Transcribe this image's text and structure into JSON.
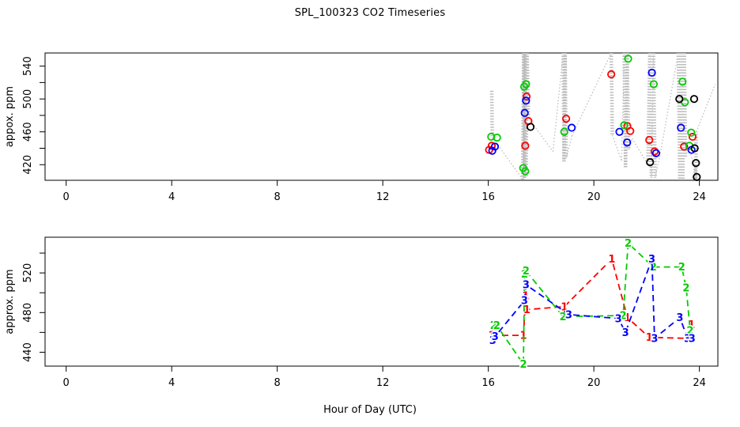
{
  "figure": {
    "title": "SPL_100323  CO2 Timeseries",
    "xlabel": "Hour of Day (UTC)"
  },
  "chart_data": [
    {
      "type": "scatter",
      "title": "SPL_100323  CO2 Timeseries",
      "ylabel": "appox. ppm",
      "xlabel": "",
      "xlim": [
        -0.8,
        24.7
      ],
      "ylim": [
        401,
        556
      ],
      "x_ticks": [
        0,
        4,
        8,
        12,
        16,
        20,
        24
      ],
      "y_ticks_labeled": [
        420,
        460,
        500,
        540
      ],
      "y_ticks_minor": [
        440,
        480,
        520
      ],
      "grid": false,
      "legend": "none",
      "grey_trace": {
        "name": "high-rate-raw-co2-trace",
        "color": "#bdbdbd",
        "style": "dotted",
        "points": [
          [
            16.13,
            510
          ],
          [
            16.15,
            452
          ],
          [
            16.3,
            447
          ],
          [
            17.3,
            402
          ],
          [
            17.34,
            556
          ],
          [
            17.37,
            404
          ],
          [
            17.4,
            556
          ],
          [
            17.43,
            406
          ],
          [
            17.47,
            556
          ],
          [
            17.52,
            477
          ],
          [
            18.45,
            436
          ],
          [
            18.84,
            556
          ],
          [
            18.87,
            424
          ],
          [
            18.91,
            556
          ],
          [
            18.95,
            428
          ],
          [
            19.17,
            455
          ],
          [
            20.66,
            556
          ],
          [
            20.7,
            456
          ],
          [
            21.05,
            425
          ],
          [
            21.15,
            556
          ],
          [
            21.2,
            417
          ],
          [
            21.26,
            556
          ],
          [
            21.32,
            438
          ],
          [
            21.45,
            452
          ],
          [
            22.05,
            420
          ],
          [
            22.12,
            556
          ],
          [
            22.18,
            404
          ],
          [
            22.26,
            556
          ],
          [
            22.32,
            404
          ],
          [
            22.5,
            430
          ],
          [
            23.2,
            556
          ],
          [
            23.26,
            403
          ],
          [
            23.31,
            556
          ],
          [
            23.37,
            403
          ],
          [
            23.43,
            556
          ],
          [
            23.47,
            430
          ],
          [
            23.6,
            440
          ],
          [
            23.84,
            415
          ],
          [
            23.86,
            402
          ],
          [
            23.88,
            460
          ],
          [
            24.6,
            518
          ]
        ]
      },
      "series": [
        {
          "name": "sample-1-red",
          "color": "#ff0000",
          "marker": "open-circle",
          "points": [
            [
              16.03,
              438
            ],
            [
              16.13,
              443
            ],
            [
              17.4,
              443
            ],
            [
              17.45,
              503
            ],
            [
              17.52,
              473
            ],
            [
              18.95,
              476
            ],
            [
              20.66,
              530
            ],
            [
              21.27,
              467
            ],
            [
              21.38,
              461
            ],
            [
              22.1,
              450
            ],
            [
              22.3,
              436
            ],
            [
              23.42,
              442
            ],
            [
              23.74,
              454
            ]
          ]
        },
        {
          "name": "sample-2-green",
          "color": "#00cc00",
          "marker": "open-circle",
          "points": [
            [
              16.11,
              454
            ],
            [
              16.33,
              453
            ],
            [
              17.32,
              416
            ],
            [
              17.4,
              412
            ],
            [
              17.36,
              515
            ],
            [
              17.43,
              518
            ],
            [
              18.88,
              460
            ],
            [
              21.15,
              468
            ],
            [
              21.3,
              549
            ],
            [
              22.27,
              518
            ],
            [
              23.36,
              521
            ],
            [
              23.45,
              496
            ],
            [
              23.62,
              443
            ],
            [
              23.69,
              459
            ]
          ]
        },
        {
          "name": "sample-3-blue",
          "color": "#0000ff",
          "marker": "open-circle",
          "points": [
            [
              16.15,
              437
            ],
            [
              16.25,
              442
            ],
            [
              17.38,
              483
            ],
            [
              17.43,
              498
            ],
            [
              19.16,
              465
            ],
            [
              20.97,
              460
            ],
            [
              21.26,
              447
            ],
            [
              22.2,
              532
            ],
            [
              22.36,
              434
            ],
            [
              23.3,
              465
            ],
            [
              23.7,
              438
            ]
          ]
        },
        {
          "name": "sample-4-black",
          "color": "#000000",
          "marker": "open-circle",
          "points": [
            [
              17.6,
              466
            ],
            [
              22.13,
              423
            ],
            [
              23.24,
              500
            ],
            [
              23.8,
              500
            ],
            [
              23.82,
              440
            ],
            [
              23.87,
              422
            ],
            [
              23.9,
              405
            ]
          ]
        }
      ]
    },
    {
      "type": "line",
      "title": "",
      "ylabel": "approx. ppm",
      "xlabel": "Hour of Day (UTC)",
      "xlim": [
        -0.8,
        24.7
      ],
      "ylim": [
        426,
        556
      ],
      "x_ticks": [
        0,
        4,
        8,
        12,
        16,
        20,
        24
      ],
      "y_ticks_labeled": [
        440,
        480,
        520
      ],
      "y_ticks_minor": [
        460,
        500,
        540
      ],
      "grid": false,
      "legend": "none",
      "series": [
        {
          "name": "flask-line-1",
          "label": "1",
          "color": "#ff0000",
          "linestyle": "dashed",
          "points": [
            [
              16.13,
              457
            ],
            [
              17.33,
              457
            ],
            [
              17.42,
              497
            ],
            [
              17.46,
              483
            ],
            [
              18.88,
              486
            ],
            [
              20.68,
              534
            ],
            [
              21.27,
              475
            ],
            [
              22.1,
              455
            ],
            [
              23.58,
              454
            ],
            [
              23.7,
              468
            ]
          ]
        },
        {
          "name": "flask-line-2",
          "label": "2",
          "color": "#00cc00",
          "linestyle": "dashed",
          "points": [
            [
              16.2,
              467
            ],
            [
              16.32,
              467
            ],
            [
              17.33,
              428
            ],
            [
              17.37,
              519
            ],
            [
              17.43,
              522
            ],
            [
              18.83,
              476
            ],
            [
              21.11,
              477
            ],
            [
              21.3,
              550
            ],
            [
              22.25,
              526
            ],
            [
              23.33,
              526
            ],
            [
              23.5,
              505
            ],
            [
              23.65,
              462
            ]
          ]
        },
        {
          "name": "flask-line-3",
          "label": "3",
          "color": "#0000ff",
          "linestyle": "dashed",
          "points": [
            [
              16.17,
              452
            ],
            [
              16.26,
              456
            ],
            [
              17.37,
              492
            ],
            [
              17.43,
              508
            ],
            [
              19.05,
              478
            ],
            [
              20.93,
              474
            ],
            [
              21.2,
              460
            ],
            [
              22.2,
              534
            ],
            [
              22.3,
              454
            ],
            [
              23.26,
              475
            ],
            [
              23.55,
              454
            ],
            [
              23.72,
              454
            ]
          ]
        }
      ]
    }
  ]
}
